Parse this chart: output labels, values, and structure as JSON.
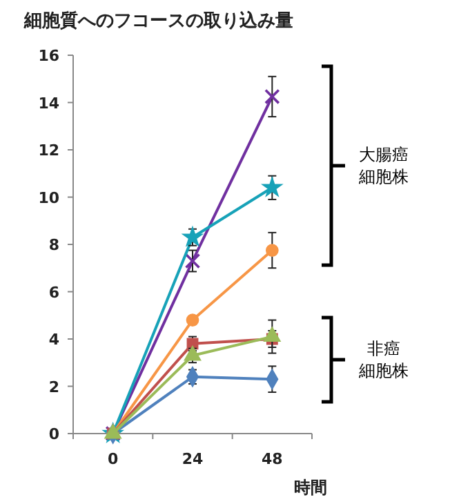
{
  "chart_data": {
    "type": "line",
    "title": "細胞質へのフコースの取り込み量",
    "xlabel": "時間",
    "categories": [
      "0",
      "24",
      "48"
    ],
    "ylim": [
      0,
      16
    ],
    "yticks": [
      0,
      2,
      4,
      6,
      8,
      10,
      12,
      14,
      16
    ],
    "grid": false,
    "series": [
      {
        "color": "#7030a0",
        "marker": "cross",
        "values": [
          0,
          7.3,
          14.25
        ],
        "errors": [
          null,
          0.45,
          0.85
        ]
      },
      {
        "color": "#17a2b8",
        "marker": "star",
        "values": [
          0,
          8.3,
          10.4
        ],
        "errors": [
          null,
          0.35,
          0.5
        ]
      },
      {
        "color": "#f79646",
        "marker": "circle",
        "values": [
          0,
          4.8,
          7.75
        ],
        "errors": [
          null,
          null,
          0.75
        ]
      },
      {
        "color": "#c0504d",
        "marker": "square",
        "values": [
          0,
          3.8,
          4.0
        ],
        "errors": [
          null,
          0.3,
          0.35
        ]
      },
      {
        "color": "#4f81bd",
        "marker": "diamond",
        "values": [
          0,
          2.4,
          2.3
        ],
        "errors": [
          null,
          0.3,
          0.55
        ]
      },
      {
        "color": "#9bbb59",
        "marker": "triangle",
        "values": [
          0,
          3.3,
          4.1
        ],
        "errors": [
          null,
          0.3,
          0.7
        ]
      }
    ],
    "annotations": [
      "大腸癌細胞株",
      "非癌細胞株"
    ]
  }
}
